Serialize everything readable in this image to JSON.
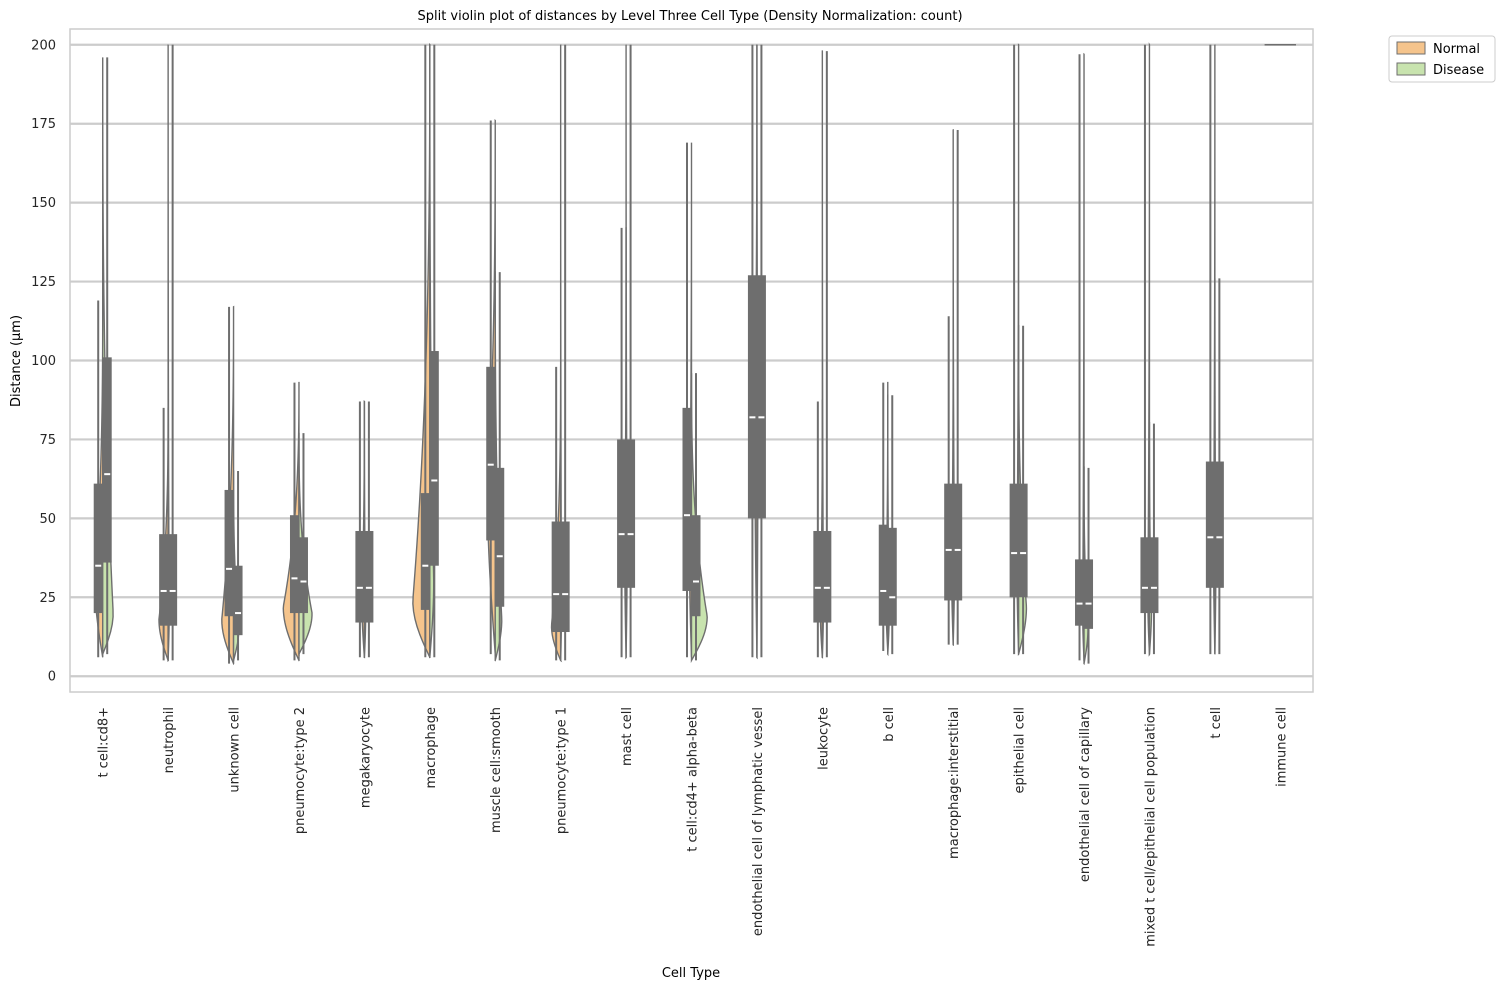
{
  "chart_data": {
    "type": "violin",
    "split": true,
    "title": "Split violin plot of distances by Level Three Cell Type (Density Normalization: count)",
    "xlabel": "Cell Type",
    "ylabel": "Distance (μm)",
    "ylim": [
      -5,
      205
    ],
    "yticks": [
      0,
      25,
      50,
      75,
      100,
      125,
      150,
      175,
      200
    ],
    "grid": true,
    "legend_position": "outside-top-right",
    "colors": {
      "Normal": "#f5c48c",
      "Disease": "#c8e3ae",
      "box": "#6e6e6e",
      "outline": "#6e6e6e"
    },
    "categories": [
      "t cell:cd8+",
      "neutrophil",
      "unknown cell",
      "pneumocyte:type 2",
      "megakaryocyte",
      "macrophage",
      "muscle cell:smooth",
      "pneumocyte:type 1",
      "mast cell",
      "t cell:cd4+ alpha-beta",
      "endothelial cell of lymphatic vessel",
      "leukocyte",
      "b cell",
      "macrophage:interstitial",
      "epithelial cell",
      "endothelial cell of capillary",
      "mixed t cell/epithelial cell population",
      "t cell",
      "immune cell"
    ],
    "series": [
      {
        "name": "Normal",
        "stats": [
          {
            "min": 6,
            "q1": 20,
            "median": 35,
            "q3": 61,
            "max": 119,
            "width": 0.3,
            "peak": 30
          },
          {
            "min": 5,
            "q1": 16,
            "median": 27,
            "q3": 45,
            "max": 85,
            "width": 0.35,
            "peak": 18
          },
          {
            "min": 4,
            "q1": 19,
            "median": 34,
            "q3": 59,
            "max": 117,
            "width": 0.45,
            "peak": 18
          },
          {
            "min": 5,
            "q1": 20,
            "median": 31,
            "q3": 51,
            "max": 93,
            "width": 0.6,
            "peak": 22
          },
          {
            "min": 6,
            "q1": 17,
            "median": 28,
            "q3": 46,
            "max": 87,
            "width": 0.1,
            "peak": 25
          },
          {
            "min": 6,
            "q1": 21,
            "median": 35,
            "q3": 58,
            "max": 200,
            "width": 0.65,
            "peak": 24
          },
          {
            "min": 7,
            "q1": 43,
            "median": 67,
            "q3": 98,
            "max": 176,
            "width": 0.3,
            "peak": 60
          },
          {
            "min": 5,
            "q1": 14,
            "median": 26,
            "q3": 49,
            "max": 98,
            "width": 0.35,
            "peak": 16
          },
          {
            "min": 6,
            "q1": 28,
            "median": 45,
            "q3": 75,
            "max": 142,
            "width": 0.05,
            "peak": 40
          },
          {
            "min": 6,
            "q1": 27,
            "median": 51,
            "q3": 85,
            "max": 169,
            "width": 0.08,
            "peak": 40
          },
          {
            "min": 6,
            "q1": 50,
            "median": 82,
            "q3": 127,
            "max": 200,
            "width": 0.08,
            "peak": 80
          },
          {
            "min": 6,
            "q1": 17,
            "median": 28,
            "q3": 46,
            "max": 87,
            "width": 0.08,
            "peak": 22
          },
          {
            "min": 8,
            "q1": 16,
            "median": 27,
            "q3": 48,
            "max": 93,
            "width": 0.07,
            "peak": 25
          },
          {
            "min": 10,
            "q1": 24,
            "median": 40,
            "q3": 61,
            "max": 114,
            "width": 0.06,
            "peak": 35
          },
          {
            "min": 7,
            "q1": 25,
            "median": 39,
            "q3": 61,
            "max": 200,
            "width": 0.06,
            "peak": 35
          },
          {
            "min": 5,
            "q1": 16,
            "median": 23,
            "q3": 37,
            "max": 197,
            "width": 0.05,
            "peak": 20
          },
          {
            "min": 7,
            "q1": 20,
            "median": 28,
            "q3": 44,
            "max": 200,
            "width": 0.06,
            "peak": 25
          },
          {
            "min": 7,
            "q1": 28,
            "median": 44,
            "q3": 68,
            "max": 200,
            "width": 0.05,
            "peak": 40
          },
          null
        ]
      },
      {
        "name": "Disease",
        "stats": [
          {
            "min": 7,
            "q1": 36,
            "median": 64,
            "q3": 101,
            "max": 196,
            "width": 0.4,
            "peak": 20
          },
          {
            "min": 5,
            "q1": 16,
            "median": 27,
            "q3": 45,
            "max": 200,
            "width": 0.04,
            "peak": 20
          },
          {
            "min": 5,
            "q1": 13,
            "median": 20,
            "q3": 35,
            "max": 65,
            "width": 0.2,
            "peak": 15
          },
          {
            "min": 7,
            "q1": 20,
            "median": 30,
            "q3": 44,
            "max": 77,
            "width": 0.5,
            "peak": 20
          },
          {
            "min": 6,
            "q1": 17,
            "median": 28,
            "q3": 46,
            "max": 87,
            "width": 0.05,
            "peak": 20
          },
          {
            "min": 6,
            "q1": 35,
            "median": 62,
            "q3": 103,
            "max": 200,
            "width": 0.15,
            "peak": 30
          },
          {
            "min": 5,
            "q1": 22,
            "median": 38,
            "q3": 66,
            "max": 128,
            "width": 0.25,
            "peak": 18
          },
          {
            "min": 5,
            "q1": 14,
            "median": 26,
            "q3": 49,
            "max": 200,
            "width": 0.03,
            "peak": 20
          },
          {
            "min": 6,
            "q1": 28,
            "median": 45,
            "q3": 75,
            "max": 200,
            "width": 0.04,
            "peak": 40
          },
          {
            "min": 5,
            "q1": 19,
            "median": 30,
            "q3": 51,
            "max": 96,
            "width": 0.6,
            "peak": 19
          },
          {
            "min": 6,
            "q1": 50,
            "median": 82,
            "q3": 127,
            "max": 200,
            "width": 0.04,
            "peak": 80
          },
          {
            "min": 6,
            "q1": 17,
            "median": 28,
            "q3": 46,
            "max": 198,
            "width": 0.04,
            "peak": 22
          },
          {
            "min": 7,
            "q1": 16,
            "median": 25,
            "q3": 47,
            "max": 89,
            "width": 0.06,
            "peak": 22
          },
          {
            "min": 10,
            "q1": 24,
            "median": 40,
            "q3": 61,
            "max": 173,
            "width": 0.05,
            "peak": 35
          },
          {
            "min": 7,
            "q1": 25,
            "median": 39,
            "q3": 61,
            "max": 111,
            "width": 0.3,
            "peak": 22
          },
          {
            "min": 4,
            "q1": 15,
            "median": 23,
            "q3": 37,
            "max": 66,
            "width": 0.15,
            "peak": 15
          },
          {
            "min": 7,
            "q1": 20,
            "median": 28,
            "q3": 44,
            "max": 80,
            "width": 0.08,
            "peak": 22
          },
          {
            "min": 7,
            "q1": 28,
            "median": 44,
            "q3": 68,
            "max": 126,
            "width": 0.04,
            "peak": 40
          },
          {
            "min": 200,
            "q1": 200,
            "median": 200,
            "q3": 200,
            "max": 200,
            "width": 0,
            "peak": 200
          }
        ]
      }
    ]
  }
}
